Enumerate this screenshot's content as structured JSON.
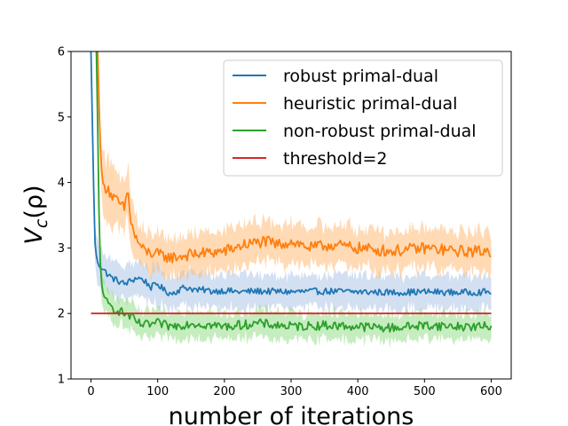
{
  "chart_data": {
    "type": "line",
    "title": "",
    "xlabel": "number of iterations",
    "ylabel": "V_c(ρ)",
    "ylabel_main": "V",
    "ylabel_sub": "c",
    "ylabel_tail": "(ρ)",
    "xlim": [
      -30,
      630
    ],
    "ylim": [
      1,
      6
    ],
    "xticks": [
      0,
      100,
      200,
      300,
      400,
      500,
      600
    ],
    "yticks": [
      1,
      2,
      3,
      4,
      5,
      6
    ],
    "grid": false,
    "legend": "top-right",
    "series": [
      {
        "name": "robust primal-dual",
        "color": "#1f77b4",
        "band_color": "#aec7e8",
        "x": [
          0,
          3,
          5,
          8,
          12,
          16,
          20,
          25,
          30,
          40,
          50,
          60,
          70,
          80,
          90,
          100,
          110,
          120,
          130,
          140,
          150,
          160,
          170,
          180,
          200,
          220,
          250,
          300,
          350,
          400,
          450,
          500,
          550,
          600
        ],
        "y": [
          6.0,
          4.5,
          3.2,
          2.85,
          2.75,
          2.7,
          2.65,
          2.6,
          2.55,
          2.5,
          2.45,
          2.5,
          2.55,
          2.5,
          2.4,
          2.45,
          2.35,
          2.3,
          2.35,
          2.4,
          2.38,
          2.35,
          2.36,
          2.34,
          2.35,
          2.33,
          2.34,
          2.33,
          2.34,
          2.33,
          2.32,
          2.33,
          2.32,
          2.33
        ],
        "band": [
          0.3,
          0.3,
          0.3,
          0.3,
          0.28,
          0.28,
          0.28,
          0.28,
          0.28,
          0.28,
          0.28,
          0.28,
          0.28,
          0.28,
          0.28,
          0.28,
          0.25,
          0.25,
          0.25,
          0.25,
          0.25,
          0.25,
          0.25,
          0.25,
          0.25,
          0.25,
          0.25,
          0.25,
          0.25,
          0.25,
          0.25,
          0.25,
          0.25,
          0.25
        ]
      },
      {
        "name": "heuristic primal-dual",
        "color": "#ff7f0e",
        "band_color": "#ffbb78",
        "x": [
          10,
          12,
          14,
          16,
          20,
          25,
          30,
          40,
          50,
          55,
          60,
          65,
          70,
          80,
          100,
          120,
          150,
          200,
          230,
          260,
          280,
          300,
          330,
          360,
          400,
          450,
          500,
          550,
          600
        ],
        "y": [
          6.0,
          5.3,
          4.6,
          4.1,
          3.9,
          3.95,
          3.8,
          3.7,
          3.6,
          3.9,
          3.4,
          3.2,
          3.1,
          2.95,
          2.9,
          2.85,
          2.9,
          2.95,
          3.05,
          3.1,
          3.05,
          3.1,
          3.0,
          3.05,
          3.0,
          2.95,
          3.0,
          2.95,
          2.95
        ],
        "band": [
          0.45,
          0.45,
          0.45,
          0.45,
          0.45,
          0.45,
          0.45,
          0.4,
          0.4,
          0.4,
          0.35,
          0.35,
          0.3,
          0.3,
          0.3,
          0.3,
          0.3,
          0.3,
          0.3,
          0.3,
          0.3,
          0.3,
          0.3,
          0.3,
          0.3,
          0.3,
          0.3,
          0.3,
          0.3
        ]
      },
      {
        "name": "non-robust primal-dual",
        "color": "#2ca02c",
        "band_color": "#98df8a",
        "x": [
          8,
          10,
          12,
          14,
          17,
          20,
          25,
          30,
          40,
          50,
          60,
          70,
          80,
          100,
          120,
          150,
          200,
          250,
          300,
          350,
          400,
          450,
          500,
          550,
          600
        ],
        "y": [
          6.0,
          4.8,
          3.5,
          2.75,
          2.4,
          2.2,
          2.15,
          2.1,
          2.05,
          2.0,
          1.95,
          1.85,
          1.82,
          1.85,
          1.8,
          1.85,
          1.8,
          1.85,
          1.8,
          1.82,
          1.8,
          1.78,
          1.82,
          1.8,
          1.8
        ],
        "band": [
          0.3,
          0.3,
          0.3,
          0.3,
          0.25,
          0.22,
          0.22,
          0.2,
          0.2,
          0.2,
          0.2,
          0.2,
          0.2,
          0.2,
          0.2,
          0.2,
          0.2,
          0.2,
          0.2,
          0.2,
          0.2,
          0.2,
          0.2,
          0.2,
          0.2
        ]
      },
      {
        "name": "threshold=2",
        "color": "#d62728",
        "x": [
          0,
          600
        ],
        "y": [
          2,
          2
        ]
      }
    ]
  }
}
